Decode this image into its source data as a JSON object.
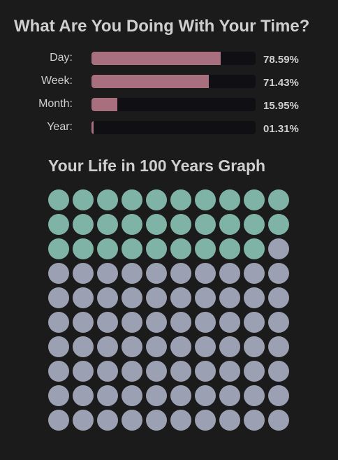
{
  "header": {
    "title": "What Are You Doing With Your Time?"
  },
  "progress": [
    {
      "label": "Day:",
      "percent_text": "78.59%",
      "fill_percent": 78.59
    },
    {
      "label": "Week:",
      "percent_text": "71.43%",
      "fill_percent": 71.43
    },
    {
      "label": "Month:",
      "percent_text": "15.95%",
      "fill_percent": 15.95
    },
    {
      "label": "Year:",
      "percent_text": "01.31%",
      "fill_percent": 1.31
    }
  ],
  "life_graph": {
    "title": "Your Life in 100 Years Graph",
    "total_years": 100,
    "lived_years": 29
  },
  "colors": {
    "background": "#1b1b1b",
    "bar_fill": "#a8707e",
    "bar_track": "#0f0f14",
    "lived_dot": "#7fb3a5",
    "remaining_dot": "#9ba0b3",
    "text": "#cfcfcf"
  }
}
